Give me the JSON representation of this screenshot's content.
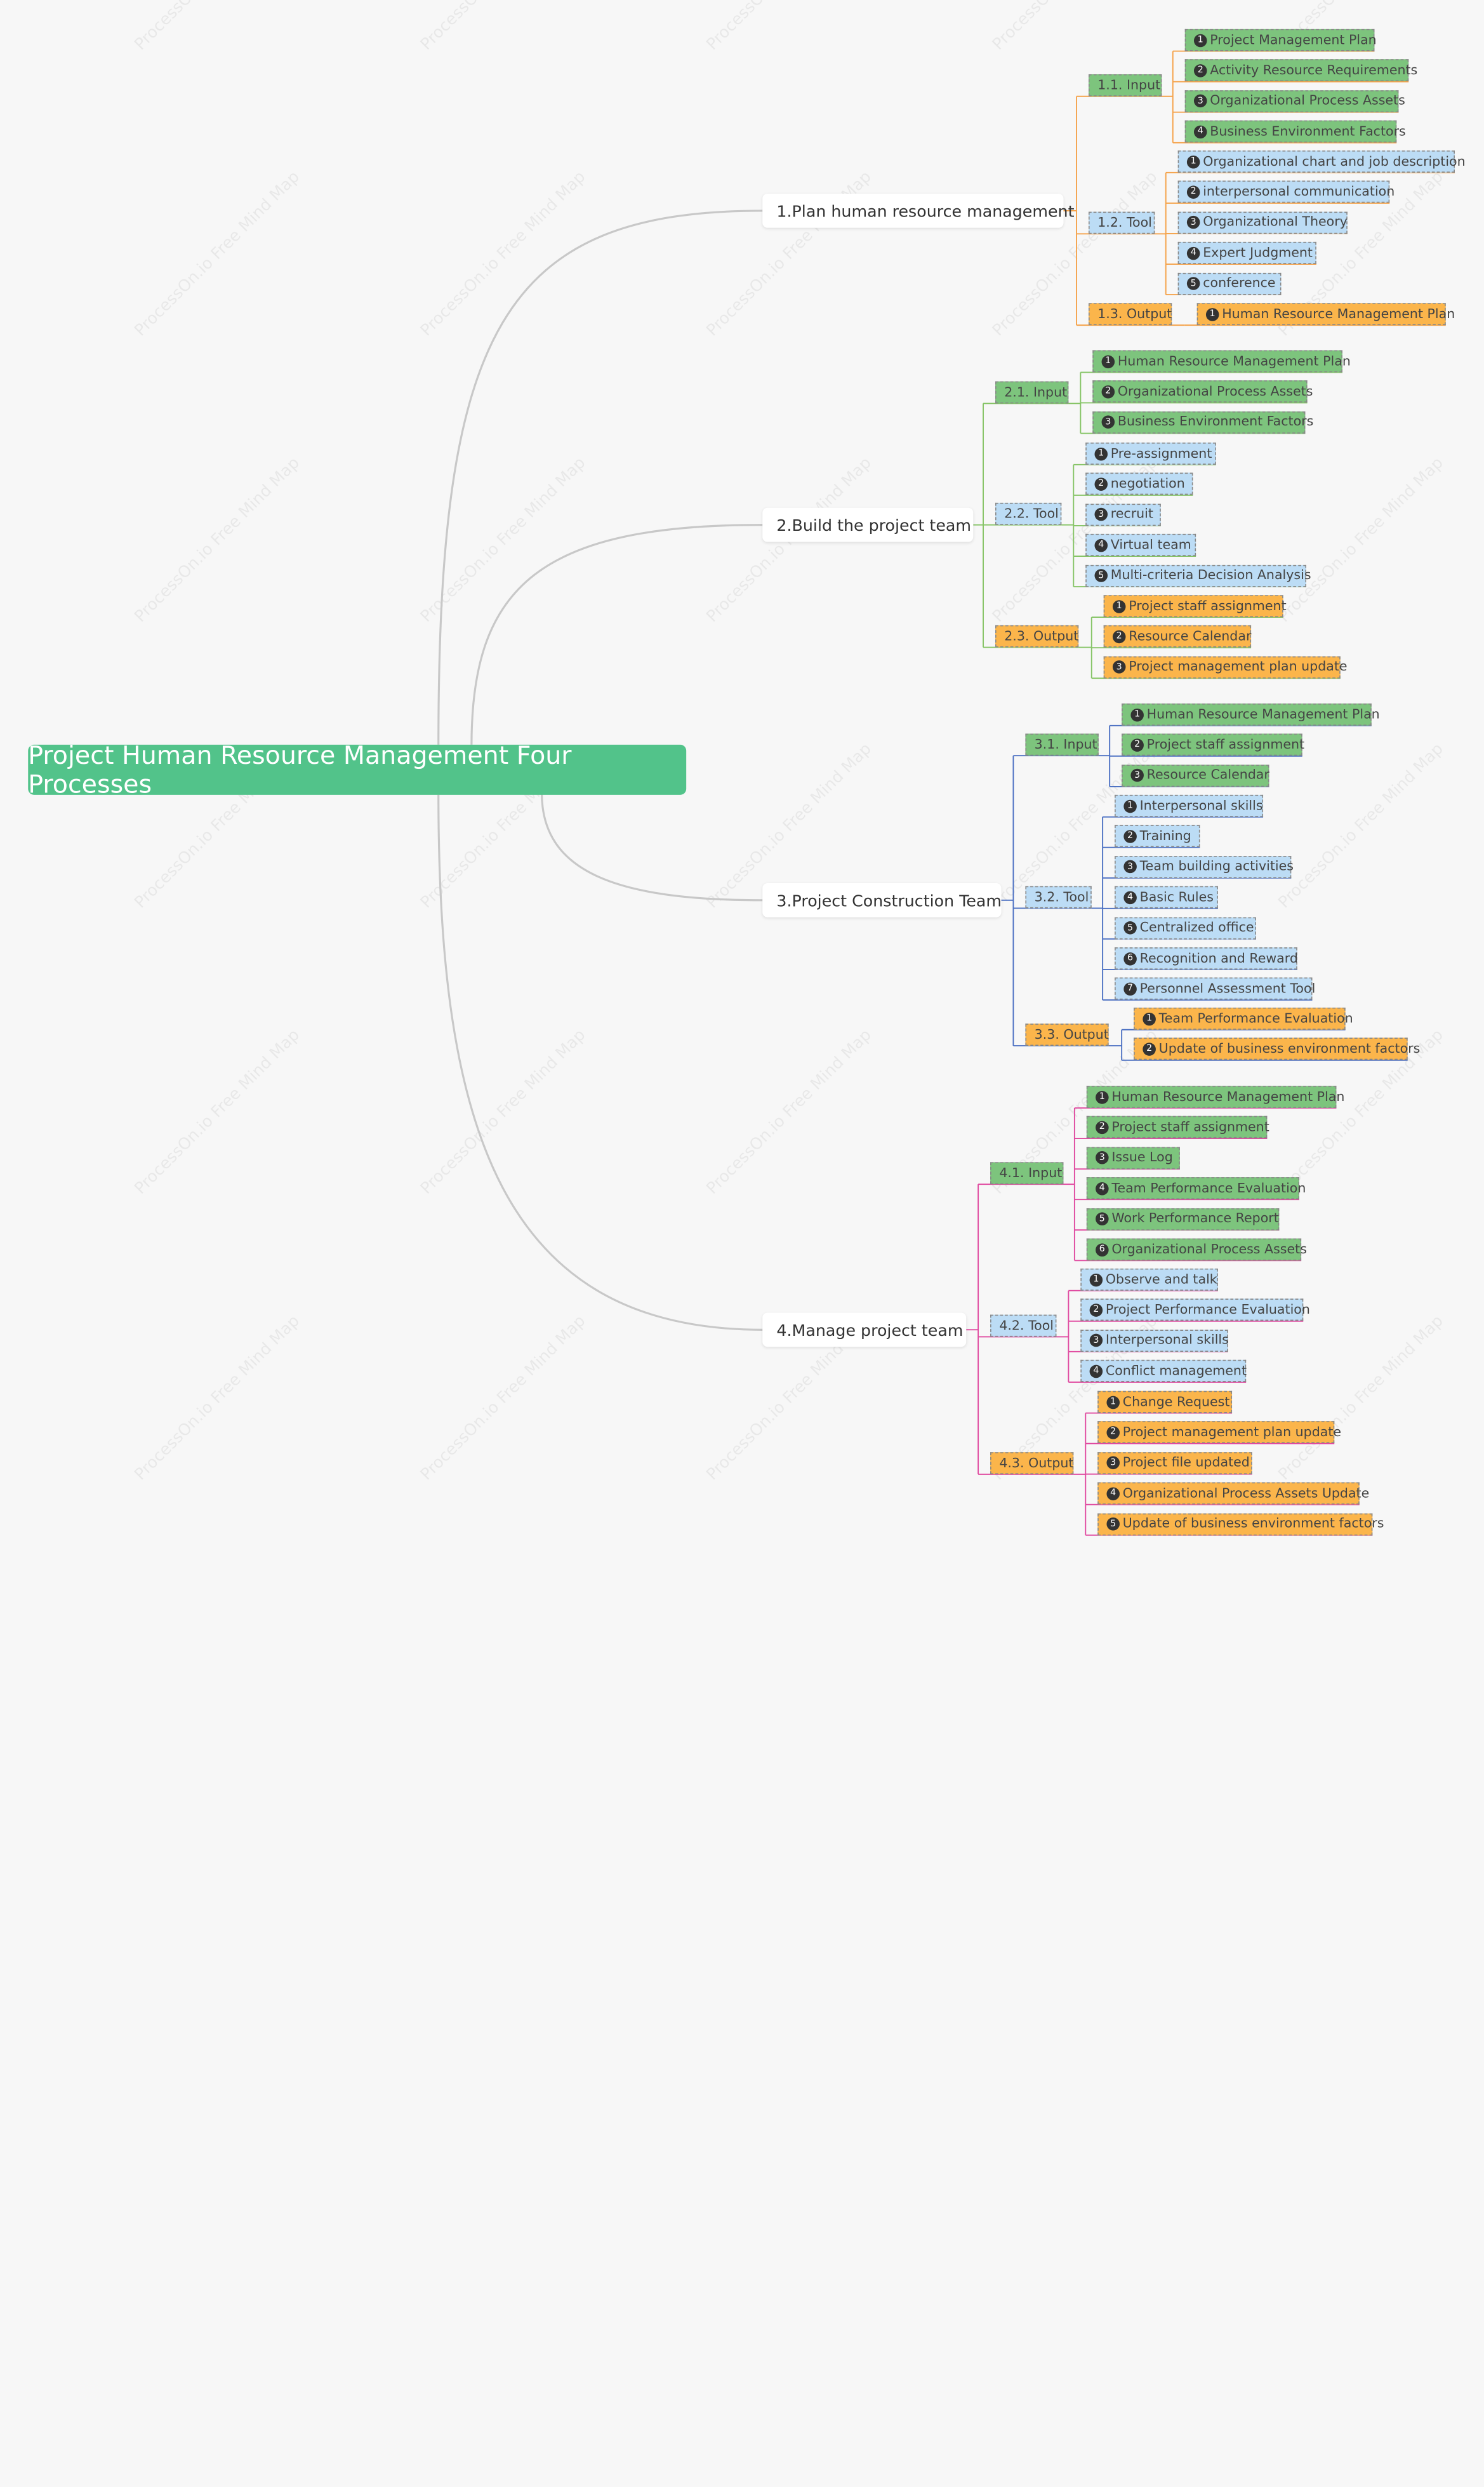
{
  "watermark": "ProcessOn.io Free Mind Map",
  "root": {
    "title": "Project Human Resource Management Four Processes"
  },
  "colors": {
    "root": "#52c38a",
    "main_connector": "#c8c8c8",
    "input": "#7dc47d",
    "tool": "#bcdcf5",
    "output": "#fbb54b",
    "branch_lines": [
      "#f5a34b",
      "#86c466",
      "#4a6fc2",
      "#e04aa0"
    ]
  },
  "branches": [
    {
      "num": "1.",
      "label": "Plan human resource management",
      "groups": [
        {
          "label": "1.1. Input",
          "type": "input",
          "items": [
            {
              "n": "1",
              "text": "Project Management Plan"
            },
            {
              "n": "2",
              "text": "Activity Resource Requirements"
            },
            {
              "n": "3",
              "text": "Organizational Process Assets"
            },
            {
              "n": "4",
              "text": "Business Environment Factors"
            }
          ]
        },
        {
          "label": "1.2. Tool",
          "type": "tool",
          "items": [
            {
              "n": "1",
              "text": "Organizational chart and job description"
            },
            {
              "n": "2",
              "text": "interpersonal communication"
            },
            {
              "n": "3",
              "text": "Organizational Theory"
            },
            {
              "n": "4",
              "text": "Expert Judgment"
            },
            {
              "n": "5",
              "text": "conference"
            }
          ]
        },
        {
          "label": "1.3. Output",
          "type": "output",
          "items": [
            {
              "n": "1",
              "text": "Human Resource Management Plan"
            }
          ]
        }
      ]
    },
    {
      "num": "2.",
      "label": "Build the project team",
      "groups": [
        {
          "label": "2.1. Input",
          "type": "input",
          "items": [
            {
              "n": "1",
              "text": "Human Resource Management Plan"
            },
            {
              "n": "2",
              "text": "Organizational Process Assets"
            },
            {
              "n": "3",
              "text": "Business Environment Factors"
            }
          ]
        },
        {
          "label": "2.2. Tool",
          "type": "tool",
          "items": [
            {
              "n": "1",
              "text": "Pre-assignment"
            },
            {
              "n": "2",
              "text": "negotiation"
            },
            {
              "n": "3",
              "text": "recruit"
            },
            {
              "n": "4",
              "text": "Virtual team"
            },
            {
              "n": "5",
              "text": "Multi-criteria Decision Analysis"
            }
          ]
        },
        {
          "label": "2.3. Output",
          "type": "output",
          "items": [
            {
              "n": "1",
              "text": "Project staff assignment"
            },
            {
              "n": "2",
              "text": "Resource Calendar"
            },
            {
              "n": "3",
              "text": "Project management plan update"
            }
          ]
        }
      ]
    },
    {
      "num": "3.",
      "label": "Project Construction Team",
      "groups": [
        {
          "label": "3.1. Input",
          "type": "input",
          "items": [
            {
              "n": "1",
              "text": "Human Resource Management Plan"
            },
            {
              "n": "2",
              "text": "Project staff assignment"
            },
            {
              "n": "3",
              "text": "Resource Calendar"
            }
          ]
        },
        {
          "label": "3.2. Tool",
          "type": "tool",
          "items": [
            {
              "n": "1",
              "text": "Interpersonal skills"
            },
            {
              "n": "2",
              "text": "Training"
            },
            {
              "n": "3",
              "text": "Team building activities"
            },
            {
              "n": "4",
              "text": "Basic Rules"
            },
            {
              "n": "5",
              "text": "Centralized office"
            },
            {
              "n": "6",
              "text": "Recognition and Reward"
            },
            {
              "n": "7",
              "text": "Personnel Assessment Tool"
            }
          ]
        },
        {
          "label": "3.3. Output",
          "type": "output",
          "items": [
            {
              "n": "1",
              "text": "Team Performance Evaluation"
            },
            {
              "n": "2",
              "text": "Update of business environment factors"
            }
          ]
        }
      ]
    },
    {
      "num": "4.",
      "label": "Manage project team",
      "groups": [
        {
          "label": "4.1. Input",
          "type": "input",
          "items": [
            {
              "n": "1",
              "text": "Human Resource Management Plan"
            },
            {
              "n": "2",
              "text": "Project staff assignment"
            },
            {
              "n": "3",
              "text": "Issue Log"
            },
            {
              "n": "4",
              "text": "Team Performance Evaluation"
            },
            {
              "n": "5",
              "text": "Work Performance Report"
            },
            {
              "n": "6",
              "text": "Organizational Process Assets"
            }
          ]
        },
        {
          "label": "4.2. Tool",
          "type": "tool",
          "items": [
            {
              "n": "1",
              "text": "Observe and talk"
            },
            {
              "n": "2",
              "text": "Project Performance Evaluation"
            },
            {
              "n": "3",
              "text": "Interpersonal skills"
            },
            {
              "n": "4",
              "text": "Conflict management"
            }
          ]
        },
        {
          "label": "4.3. Output",
          "type": "output",
          "items": [
            {
              "n": "1",
              "text": "Change Request"
            },
            {
              "n": "2",
              "text": "Project management plan update"
            },
            {
              "n": "3",
              "text": "Project file updated"
            },
            {
              "n": "4",
              "text": "Organizational Process Assets Update"
            },
            {
              "n": "5",
              "text": "Update of business environment factors"
            }
          ]
        }
      ]
    }
  ]
}
